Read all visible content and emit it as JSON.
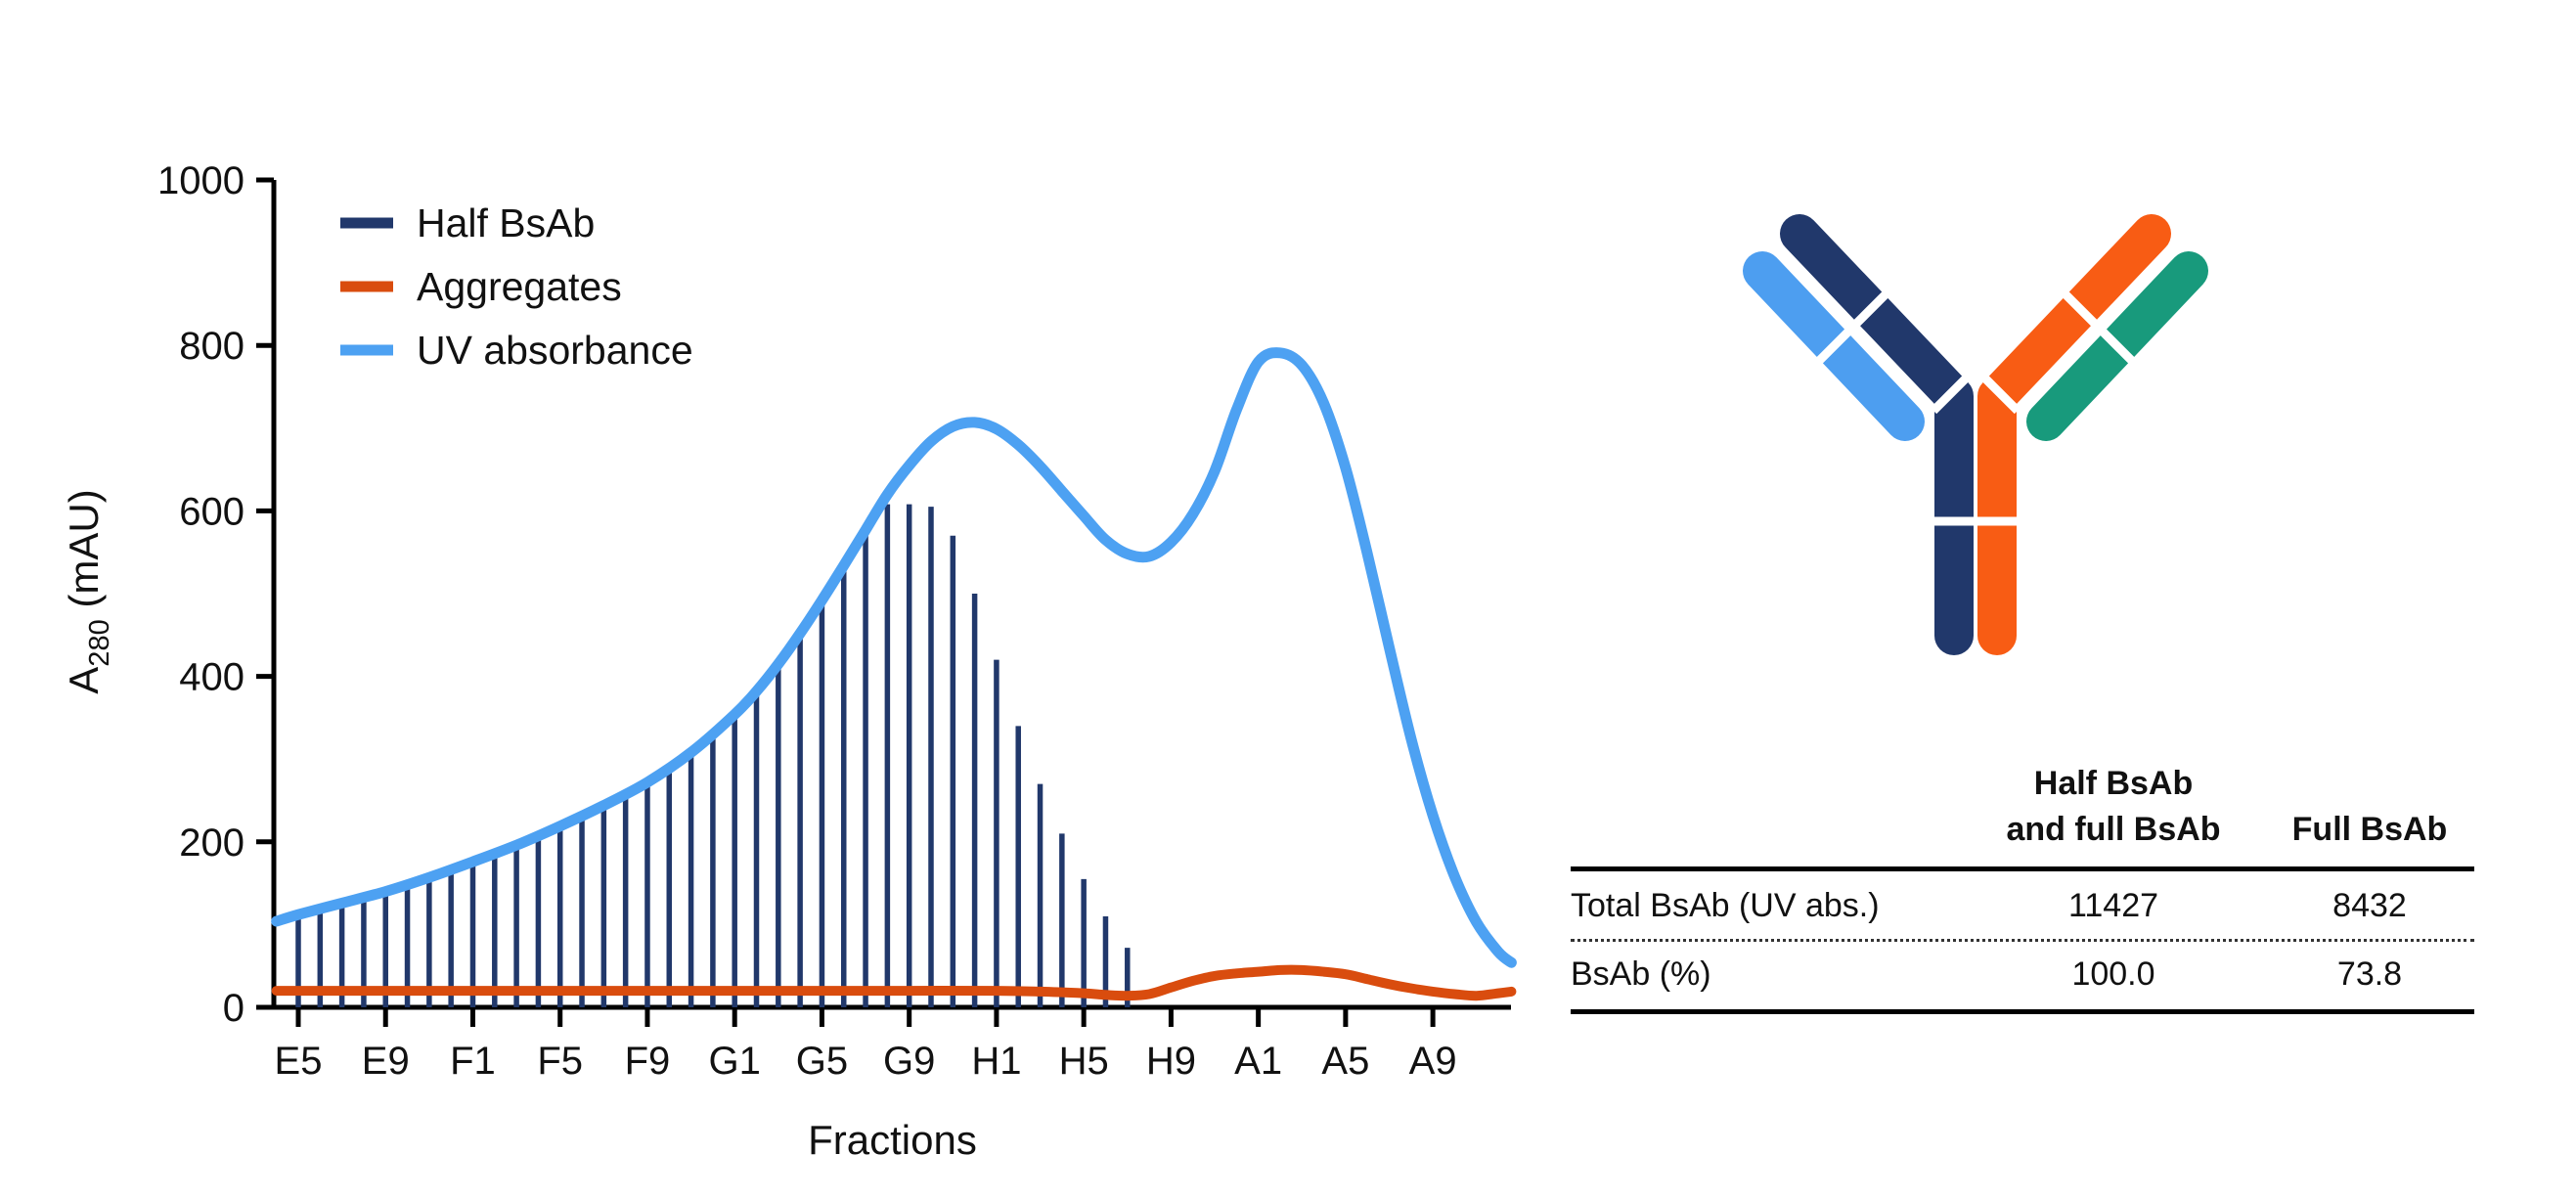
{
  "chart_data": {
    "type": "line+bar",
    "title": "",
    "xlabel": "Fractions",
    "ylabel": {
      "pre": "A",
      "sub": "280",
      "post": " (mAU)"
    },
    "ylim": [
      0,
      1000
    ],
    "y_ticks": [
      0,
      200,
      400,
      600,
      800,
      1000
    ],
    "x_tick_labels": [
      "E5",
      "E9",
      "F1",
      "F5",
      "F9",
      "G1",
      "G5",
      "G9",
      "H1",
      "H5",
      "H9",
      "A1",
      "A5",
      "A9"
    ],
    "x_tick_indices": [
      0,
      4,
      8,
      12,
      16,
      20,
      24,
      28,
      32,
      36,
      40,
      44,
      48,
      52
    ],
    "grid": false,
    "legend_position": "top-left-inside",
    "legend": [
      {
        "label": "Half BsAb",
        "series": "half_bsab",
        "color": "#21386b"
      },
      {
        "label": "Aggregates",
        "series": "aggregates",
        "color": "#d94c0e"
      },
      {
        "label": "UV absorbance",
        "series": "uv_absorbance",
        "color": "#4da1f2"
      }
    ],
    "series": {
      "half_bsab": {
        "type": "bar",
        "color": "#21386b",
        "points": [
          [
            0,
            112
          ],
          [
            1,
            119
          ],
          [
            2,
            126
          ],
          [
            3,
            133
          ],
          [
            4,
            140
          ],
          [
            5,
            148
          ],
          [
            6,
            157
          ],
          [
            7,
            166
          ],
          [
            8,
            176
          ],
          [
            9,
            186
          ],
          [
            10,
            196
          ],
          [
            11,
            207
          ],
          [
            12,
            219
          ],
          [
            13,
            231
          ],
          [
            14,
            244
          ],
          [
            15,
            258
          ],
          [
            16,
            272
          ],
          [
            17,
            289
          ],
          [
            18,
            308
          ],
          [
            19,
            330
          ],
          [
            20,
            354
          ],
          [
            21,
            382
          ],
          [
            22,
            415
          ],
          [
            23,
            452
          ],
          [
            24,
            492
          ],
          [
            25,
            534
          ],
          [
            26,
            577
          ],
          [
            27,
            608
          ],
          [
            28,
            608
          ],
          [
            29,
            605
          ],
          [
            30,
            570
          ],
          [
            31,
            500
          ],
          [
            32,
            420
          ],
          [
            33,
            340
          ],
          [
            34,
            270
          ],
          [
            35,
            210
          ],
          [
            36,
            155
          ],
          [
            37,
            110
          ],
          [
            38,
            72
          ]
        ]
      },
      "aggregates": {
        "type": "line",
        "color": "#d94c0e",
        "points": [
          [
            -1,
            20
          ],
          [
            4,
            20
          ],
          [
            8,
            20
          ],
          [
            12,
            20
          ],
          [
            16,
            20
          ],
          [
            20,
            20
          ],
          [
            24,
            20
          ],
          [
            28,
            20
          ],
          [
            32,
            20
          ],
          [
            34,
            19
          ],
          [
            36,
            17
          ],
          [
            37,
            15
          ],
          [
            38,
            14
          ],
          [
            39,
            16
          ],
          [
            40,
            24
          ],
          [
            41,
            32
          ],
          [
            42,
            38
          ],
          [
            43,
            41
          ],
          [
            44,
            43
          ],
          [
            45,
            45
          ],
          [
            46,
            45
          ],
          [
            47,
            43
          ],
          [
            48,
            40
          ],
          [
            49,
            34
          ],
          [
            50,
            28
          ],
          [
            51,
            23
          ],
          [
            52,
            19
          ],
          [
            53,
            16
          ],
          [
            54,
            14
          ],
          [
            55,
            17
          ],
          [
            55.6,
            19
          ]
        ]
      },
      "uv_absorbance": {
        "type": "line",
        "color": "#4da1f2",
        "points": [
          [
            -1,
            104
          ],
          [
            0,
            112
          ],
          [
            2,
            126
          ],
          [
            4,
            140
          ],
          [
            6,
            157
          ],
          [
            8,
            176
          ],
          [
            10,
            196
          ],
          [
            12,
            219
          ],
          [
            14,
            244
          ],
          [
            16,
            272
          ],
          [
            18,
            308
          ],
          [
            20,
            354
          ],
          [
            21,
            382
          ],
          [
            22,
            415
          ],
          [
            23,
            452
          ],
          [
            24,
            492
          ],
          [
            25,
            534
          ],
          [
            26,
            577
          ],
          [
            27,
            620
          ],
          [
            28,
            655
          ],
          [
            29,
            684
          ],
          [
            30,
            702
          ],
          [
            31,
            707
          ],
          [
            32,
            699
          ],
          [
            33,
            680
          ],
          [
            34,
            654
          ],
          [
            35,
            624
          ],
          [
            36,
            594
          ],
          [
            37,
            565
          ],
          [
            38,
            548
          ],
          [
            39,
            545
          ],
          [
            40,
            562
          ],
          [
            41,
            596
          ],
          [
            42,
            648
          ],
          [
            43,
            722
          ],
          [
            44,
            780
          ],
          [
            45,
            791
          ],
          [
            46,
            776
          ],
          [
            47,
            730
          ],
          [
            48,
            652
          ],
          [
            49,
            548
          ],
          [
            50,
            435
          ],
          [
            51,
            325
          ],
          [
            52,
            232
          ],
          [
            53,
            158
          ],
          [
            54,
            103
          ],
          [
            55,
            67
          ],
          [
            55.6,
            54
          ]
        ]
      }
    }
  },
  "antibody": {
    "description": "bispecific antibody schematic",
    "chains": [
      {
        "id": "heavy-left",
        "color": "#21386b"
      },
      {
        "id": "light-left",
        "color": "#4d9ef0"
      },
      {
        "id": "heavy-right",
        "color": "#f85c14"
      },
      {
        "id": "light-right",
        "color": "#189a7c"
      }
    ]
  },
  "table": {
    "columns": [
      {
        "line1": "",
        "line2": ""
      },
      {
        "line1": "Half BsAb",
        "line2": "and full BsAb"
      },
      {
        "line1": "",
        "line2": "Full BsAb"
      }
    ],
    "rows": [
      {
        "label": "Total BsAb (UV abs.)",
        "values": [
          "11427",
          "8432"
        ]
      },
      {
        "label": "BsAb (%)",
        "values": [
          "100.0",
          "73.8"
        ]
      }
    ]
  }
}
